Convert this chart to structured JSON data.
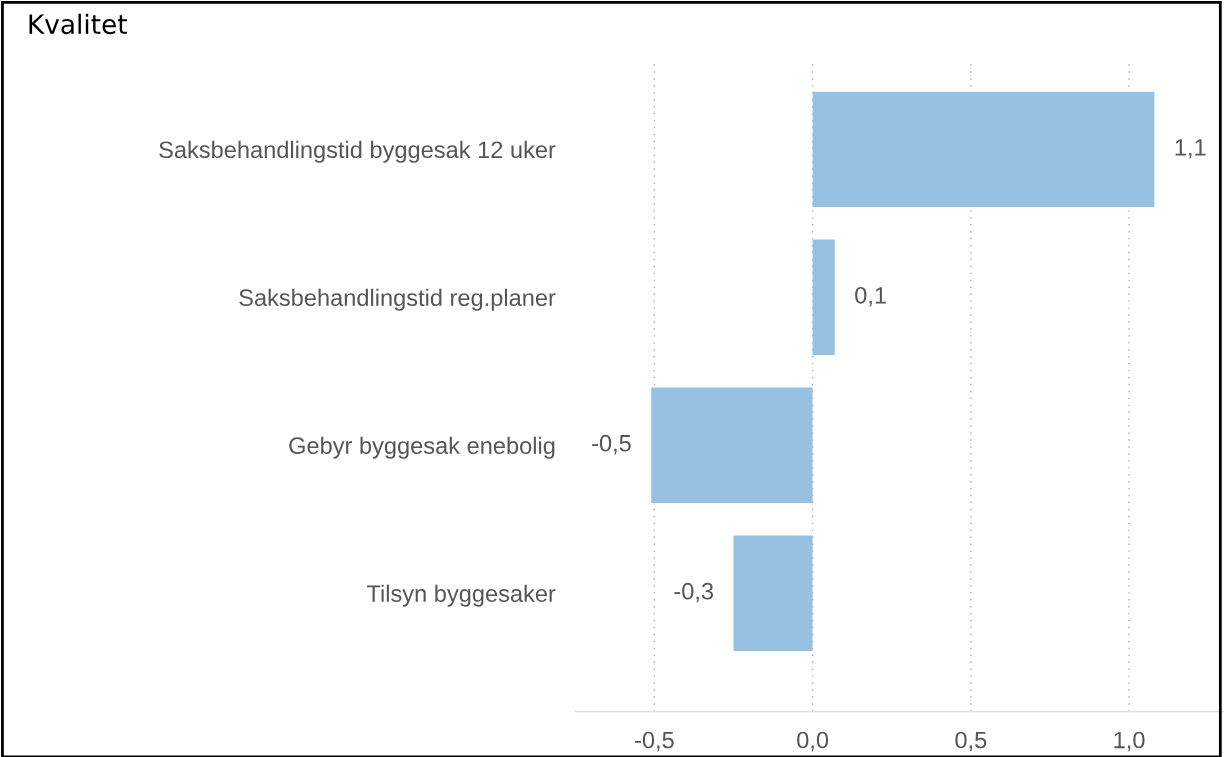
{
  "chart_data": {
    "type": "bar",
    "orientation": "horizontal",
    "title": "Kvalitet",
    "categories": [
      "Saksbehandlingstid byggesak 12 uker",
      "Saksbehandlingstid reg.planer",
      "Gebyr byggesak enebolig",
      "Tilsyn byggesaker"
    ],
    "values": [
      1.08,
      0.07,
      -0.51,
      -0.25
    ],
    "value_labels": [
      "1,1",
      "0,1",
      "-0,5",
      "-0,3"
    ],
    "color": "#97c1e2",
    "xticks": [
      {
        "value": -0.5,
        "label": "-0,5"
      },
      {
        "value": 0,
        "label": "0,0"
      },
      {
        "value": 0.5,
        "label": "0,5"
      },
      {
        "value": 1.0,
        "label": "1,0"
      }
    ],
    "xlim": [
      -0.75,
      1.3
    ],
    "grid": "x",
    "legend": false
  }
}
